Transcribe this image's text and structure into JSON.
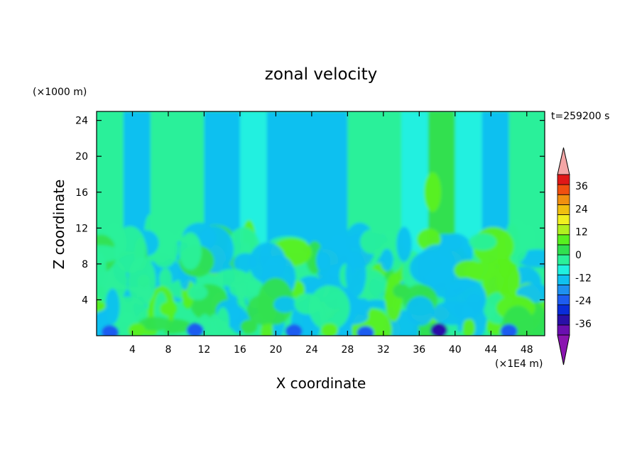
{
  "chart_data": {
    "type": "heatmap",
    "title": "zonal velocity",
    "time_label": "t=259200 s",
    "xlabel": "X coordinate",
    "ylabel": "Z coordinate",
    "x_unit": "(×1E4 m)",
    "y_unit": "(×1000 m)",
    "xlim": [
      0,
      50
    ],
    "ylim": [
      0,
      25
    ],
    "x_ticks": [
      4,
      8,
      12,
      16,
      20,
      24,
      28,
      32,
      36,
      40,
      44,
      48
    ],
    "y_ticks": [
      4,
      8,
      12,
      16,
      20,
      24
    ],
    "colorbar": {
      "range": [
        -42,
        42
      ],
      "step": 6,
      "labels": [
        36,
        24,
        12,
        0,
        -12,
        -24,
        -36
      ],
      "colors": [
        "#6a0fb0",
        "#2a10a8",
        "#0a2cd8",
        "#1e5cf0",
        "#1e90f0",
        "#10c0f0",
        "#20f0e0",
        "#2af09a",
        "#30e050",
        "#58f020",
        "#b0f020",
        "#f0f020",
        "#f0c010",
        "#f09010",
        "#f05010",
        "#e01818"
      ],
      "over_color": "#f4a6a6",
      "under_color": "#8a14b0"
    }
  }
}
